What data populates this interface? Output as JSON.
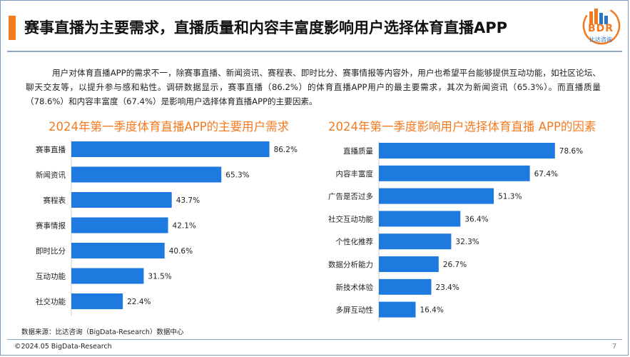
{
  "header": {
    "title": "赛事直播为主要需求，直播质量和内容丰富度影响用户选择体育直播APP"
  },
  "logo": {
    "text": "BDR",
    "subtitle": "比达咨询",
    "colors": [
      "#f47a20",
      "#2a74c8"
    ]
  },
  "intro": {
    "text": "用户对体育直播APP的需求不一，除赛事直播、新闻资讯、赛程表、即时比分、赛事情报等内容外，用户也希望平台能够提供互动功能，如社区论坛、聊天交友等，以提升参与感和粘性。调研数据显示，赛事直播（86.2%）的体育直播APP用户的最主要需求，其次为新闻资讯（65.3%）。而直播质量（78.6%）和内容丰富度（67.4%）是影响用户选择体育直播APP的主要因素。"
  },
  "chart_data": [
    {
      "type": "bar",
      "orientation": "horizontal",
      "title": "2024年第一季度体育直播APP的主要用户需求",
      "categories": [
        "赛事直播",
        "新闻资讯",
        "赛程表",
        "赛事情报",
        "即时比分",
        "互动功能",
        "社交功能"
      ],
      "values": [
        86.2,
        65.3,
        43.7,
        42.1,
        40.6,
        31.5,
        22.4
      ],
      "value_labels": [
        "86.2%",
        "65.3%",
        "43.7%",
        "42.1%",
        "40.6%",
        "31.5%",
        "22.4%"
      ],
      "unit": "%",
      "xlim": [
        0,
        100
      ],
      "bar_color": "#1f7ae0",
      "grid": false,
      "legend": "none"
    },
    {
      "type": "bar",
      "orientation": "horizontal",
      "title": "2024年第一季度影响用户选择体育直播 APP的因素",
      "categories": [
        "直播质量",
        "内容丰富度",
        "广告是否过多",
        "社交互动功能",
        "个性化推荐",
        "数据分析能力",
        "新技术体验",
        "多屏互动性"
      ],
      "values": [
        78.6,
        67.4,
        51.3,
        36.4,
        32.3,
        26.7,
        23.4,
        16.4
      ],
      "value_labels": [
        "78.6%",
        "67.4%",
        "51.3%",
        "36.4%",
        "32.3%",
        "26.7%",
        "23.4%",
        "16.4%"
      ],
      "unit": "%",
      "xlim": [
        0,
        100
      ],
      "bar_color": "#1f7ae0",
      "grid": false,
      "legend": "none"
    }
  ],
  "footer": {
    "source": "数据来源：比达咨询（BigData-Research）数据中心",
    "copyright": "©2024.05 BigData-Research",
    "page": "7"
  }
}
